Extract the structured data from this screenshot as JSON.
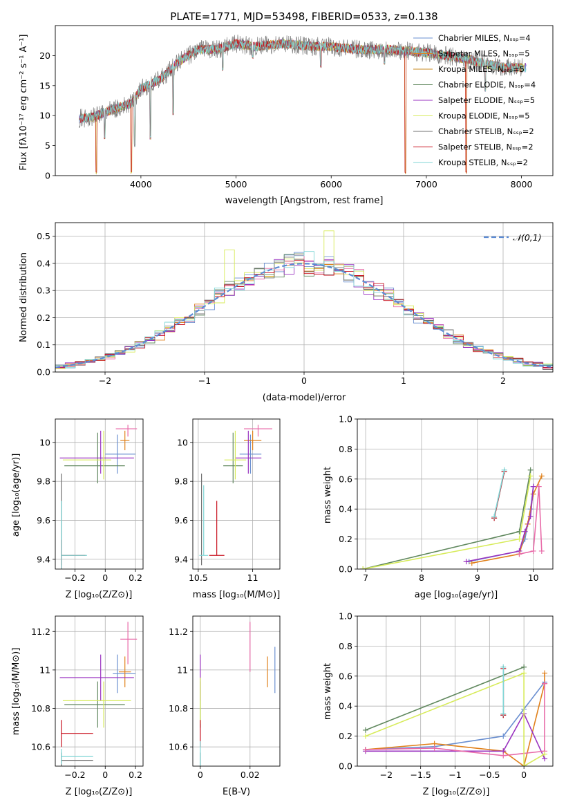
{
  "palette": [
    "#6a8fd0",
    "#e0801a",
    "#60885e",
    "#9a33c0",
    "#e86aa8",
    "#d7eb5a",
    "#707070",
    "#c8101e",
    "#7fd6d6"
  ],
  "chart_data": [
    {
      "id": "spectrum",
      "type": "line",
      "title": "PLATE=1771, MJD=53498, FIBERID=0533, z=0.138",
      "xlabel": "wavelength [Angstrom, rest frame]",
      "ylabel": "Flux [fλ10⁻¹⁷ erg cm⁻² s⁻¹ A⁻¹]",
      "xlim": [
        3100,
        8330
      ],
      "ylim": [
        0,
        25
      ],
      "xticks": [
        4000,
        5000,
        6000,
        7000,
        8000
      ],
      "yticks": [
        0,
        5,
        10,
        15,
        20
      ],
      "legend": "top-right",
      "series": [
        {
          "name": "Chabrier MILES, Nₛₛₚ=4",
          "color": "#6a8fd0"
        },
        {
          "name": "Salpeter MILES, Nₛₛₚ=5",
          "color": "#e0801a"
        },
        {
          "name": "Kroupa MILES, Nₛₛₚ=5",
          "color": "#c98a20"
        },
        {
          "name": "Chabrier ELODIE, Nₛₛₚ=4",
          "color": "#60885e"
        },
        {
          "name": "Salpeter ELODIE, Nₛₛₚ=5",
          "color": "#9a33c0"
        },
        {
          "name": "Kroupa ELODIE, Nₛₛₚ=5",
          "color": "#d7eb5a"
        },
        {
          "name": "Chabrier STELIB, Nₛₛₚ=2",
          "color": "#707070"
        },
        {
          "name": "Salpeter STELIB, Nₛₛₚ=2",
          "color": "#c8101e"
        },
        {
          "name": "Kroupa STELIB, Nₛₛₚ=2",
          "color": "#7fd6d6"
        }
      ],
      "anchors": [
        [
          3350,
          9.5
        ],
        [
          3500,
          9.8
        ],
        [
          3700,
          11
        ],
        [
          3900,
          12
        ],
        [
          4000,
          14.5
        ],
        [
          4200,
          16
        ],
        [
          4400,
          19
        ],
        [
          4600,
          21
        ],
        [
          4800,
          21
        ],
        [
          5000,
          22
        ],
        [
          5200,
          21.5
        ],
        [
          5500,
          22
        ],
        [
          5800,
          21.5
        ],
        [
          6000,
          21.5
        ],
        [
          6300,
          21
        ],
        [
          6600,
          21
        ],
        [
          7000,
          20.5
        ],
        [
          7400,
          19.5
        ],
        [
          7800,
          18
        ],
        [
          8050,
          18
        ]
      ],
      "dips": [
        [
          3530,
          0.3
        ],
        [
          3620,
          6
        ],
        [
          3900,
          0.3
        ],
        [
          3935,
          4.8
        ],
        [
          4100,
          6
        ],
        [
          4340,
          10
        ],
        [
          4860,
          17.5
        ],
        [
          5175,
          19.5
        ],
        [
          5890,
          18
        ],
        [
          6560,
          18.5
        ],
        [
          6780,
          0.3
        ],
        [
          7420,
          0.3
        ],
        [
          7620,
          14
        ]
      ]
    },
    {
      "id": "residuals",
      "type": "histogram",
      "xlabel": "(data-model)/error",
      "ylabel": "Normed distribution",
      "xlim": [
        -2.5,
        2.5
      ],
      "ylim": [
        0,
        0.55
      ],
      "xticks": [
        -2,
        -1,
        0,
        1,
        2
      ],
      "yticks": [
        0.0,
        0.1,
        0.2,
        0.3,
        0.4,
        0.5
      ],
      "bin_width": 0.1,
      "legend": "top-right",
      "reference": {
        "name": "𝒩(0,1)",
        "color": "#5b8bd4",
        "style": "dashed"
      }
    },
    {
      "id": "age_vs_Z",
      "type": "errorbar",
      "xlabel": "Z [log₁₀(Z/Z⊙)]",
      "ylabel": "age  [log₁₀(age/yr)]",
      "xlim": [
        -0.33,
        0.25
      ],
      "ylim": [
        9.35,
        10.12
      ],
      "xticks": [
        -0.2,
        0.0,
        0.2
      ],
      "yticks": [
        9.4,
        9.6,
        9.8,
        10.0
      ],
      "points": [
        {
          "x": 0.08,
          "y": 9.94,
          "xerr": [
            0.08,
            0.12
          ],
          "yerr": [
            0.1,
            0.1
          ],
          "c": 0
        },
        {
          "x": 0.13,
          "y": 10.01,
          "xerr": [
            0.03,
            0.03
          ],
          "yerr": [
            0.05,
            0.05
          ],
          "c": 1
        },
        {
          "x": -0.05,
          "y": 9.88,
          "xerr": [
            0.22,
            0.18
          ],
          "yerr": [
            0.09,
            0.17
          ],
          "c": 2
        },
        {
          "x": -0.03,
          "y": 9.92,
          "xerr": [
            0.27,
            0.22
          ],
          "yerr": [
            0.08,
            0.14
          ],
          "c": 3
        },
        {
          "x": 0.15,
          "y": 10.07,
          "xerr": [
            0.08,
            0.06
          ],
          "yerr": [
            0.04,
            0.02
          ],
          "c": 4
        },
        {
          "x": -0.01,
          "y": 9.91,
          "xerr": [
            0.27,
            0.05
          ],
          "yerr": [
            0.1,
            0.15
          ],
          "c": 5
        },
        {
          "x": -0.29,
          "y": 9.42,
          "xerr": [
            0.0,
            0.16
          ],
          "yerr": [
            0.05,
            0.42
          ],
          "c": 6
        },
        {
          "x": -0.29,
          "y": 9.42,
          "xerr": [
            0.0,
            0.16
          ],
          "yerr": [
            0.08,
            0.08
          ],
          "c": 7
        },
        {
          "x": -0.29,
          "y": 9.42,
          "xerr": [
            0.0,
            0.17
          ],
          "yerr": [
            0.12,
            0.28
          ],
          "c": 8
        }
      ]
    },
    {
      "id": "age_vs_mass",
      "type": "errorbar",
      "xlabel": "mass [log₁₀(M/M⊙)]",
      "ylabel": "",
      "xlim": [
        10.45,
        11.25
      ],
      "ylim": [
        9.35,
        10.12
      ],
      "xticks": [
        10.5,
        11.0
      ],
      "yticks": [
        9.4,
        9.6,
        9.8,
        10.0
      ],
      "points": [
        {
          "x": 10.98,
          "y": 9.94,
          "xerr": [
            0.1,
            0.1
          ],
          "yerr": [
            0.1,
            0.1
          ],
          "c": 0
        },
        {
          "x": 11.0,
          "y": 10.01,
          "xerr": [
            0.08,
            0.08
          ],
          "yerr": [
            0.05,
            0.05
          ],
          "c": 1
        },
        {
          "x": 10.82,
          "y": 9.88,
          "xerr": [
            0.09,
            0.09
          ],
          "yerr": [
            0.09,
            0.17
          ],
          "c": 2
        },
        {
          "x": 10.96,
          "y": 9.92,
          "xerr": [
            0.12,
            0.12
          ],
          "yerr": [
            0.08,
            0.14
          ],
          "c": 3
        },
        {
          "x": 11.05,
          "y": 10.07,
          "xerr": [
            0.13,
            0.13
          ],
          "yerr": [
            0.04,
            0.02
          ],
          "c": 4
        },
        {
          "x": 10.84,
          "y": 9.91,
          "xerr": [
            0.1,
            0.1
          ],
          "yerr": [
            0.1,
            0.15
          ],
          "c": 5
        },
        {
          "x": 10.53,
          "y": 9.42,
          "xerr": [
            0.0,
            0.0
          ],
          "yerr": [
            0.05,
            0.42
          ],
          "c": 6
        },
        {
          "x": 10.67,
          "y": 9.42,
          "xerr": [
            0.07,
            0.07
          ],
          "yerr": [
            0.0,
            0.28
          ],
          "c": 7
        },
        {
          "x": 10.55,
          "y": 9.42,
          "xerr": [
            0.04,
            0.04
          ],
          "yerr": [
            0.0,
            0.36
          ],
          "c": 8
        }
      ]
    },
    {
      "id": "weight_vs_age",
      "type": "line",
      "xlabel": "age  [log₁₀(age/yr)]",
      "ylabel": "mass weight",
      "xlim": [
        6.85,
        10.35
      ],
      "ylim": [
        0.0,
        1.0
      ],
      "xticks": [
        7,
        8,
        9,
        10
      ],
      "yticks": [
        0.0,
        0.2,
        0.4,
        0.6,
        0.8,
        1.0
      ],
      "series": [
        {
          "c": 0,
          "x": [
            8.85,
            9.75,
            9.85,
            9.95,
            10.0
          ],
          "y": [
            0.05,
            0.12,
            0.2,
            0.4,
            0.55
          ]
        },
        {
          "c": 1,
          "x": [
            8.9,
            9.75,
            9.9,
            10.0,
            10.15
          ],
          "y": [
            0.04,
            0.1,
            0.3,
            0.5,
            0.62
          ]
        },
        {
          "c": 2,
          "x": [
            6.95,
            9.75,
            9.95
          ],
          "y": [
            0.0,
            0.25,
            0.66
          ]
        },
        {
          "c": 3,
          "x": [
            8.8,
            9.75,
            9.85,
            9.95,
            10.0
          ],
          "y": [
            0.05,
            0.12,
            0.25,
            0.35,
            0.55
          ]
        },
        {
          "c": 4,
          "x": [
            9.75,
            10.0,
            10.1,
            10.15
          ],
          "y": [
            0.1,
            0.12,
            0.55,
            0.12
          ]
        },
        {
          "c": 5,
          "x": [
            6.95,
            9.75,
            9.95
          ],
          "y": [
            0.0,
            0.2,
            0.62
          ]
        },
        {
          "c": 6,
          "x": [
            9.3,
            9.48
          ],
          "y": [
            0.34,
            0.65
          ]
        },
        {
          "c": 7,
          "x": [
            9.3,
            9.48
          ],
          "y": [
            0.34,
            0.65
          ]
        },
        {
          "c": 8,
          "x": [
            9.3,
            9.48
          ],
          "y": [
            0.35,
            0.66
          ]
        }
      ]
    },
    {
      "id": "mass_vs_Z",
      "type": "errorbar",
      "xlabel": "Z [log₁₀(Z/Z⊙)]",
      "ylabel": "mass [log₁₀(M/M⊙)]",
      "xlim": [
        -0.33,
        0.25
      ],
      "ylim": [
        10.5,
        11.28
      ],
      "xticks": [
        -0.2,
        0.0,
        0.2
      ],
      "yticks": [
        10.6,
        10.8,
        11.0,
        11.2
      ],
      "points": [
        {
          "x": 0.08,
          "y": 10.98,
          "xerr": [
            0.03,
            0.12
          ],
          "yerr": [
            0.1,
            0.1
          ],
          "c": 0
        },
        {
          "x": 0.13,
          "y": 10.99,
          "xerr": [
            0.04,
            0.04
          ],
          "yerr": [
            0.08,
            0.08
          ],
          "c": 1
        },
        {
          "x": -0.05,
          "y": 10.82,
          "xerr": [
            0.22,
            0.18
          ],
          "yerr": [
            0.12,
            0.12
          ],
          "c": 2
        },
        {
          "x": -0.03,
          "y": 10.96,
          "xerr": [
            0.27,
            0.22
          ],
          "yerr": [
            0.12,
            0.12
          ],
          "c": 3
        },
        {
          "x": 0.15,
          "y": 11.16,
          "xerr": [
            0.05,
            0.06
          ],
          "yerr": [
            0.13,
            0.09
          ],
          "c": 4
        },
        {
          "x": -0.01,
          "y": 10.84,
          "xerr": [
            0.27,
            0.18
          ],
          "yerr": [
            0.14,
            0.1
          ],
          "c": 5
        },
        {
          "x": -0.29,
          "y": 10.53,
          "xerr": [
            0.0,
            0.21
          ],
          "yerr": [
            0.04,
            0.04
          ],
          "c": 6
        },
        {
          "x": -0.29,
          "y": 10.67,
          "xerr": [
            0.0,
            0.21
          ],
          "yerr": [
            0.07,
            0.07
          ],
          "c": 7
        },
        {
          "x": -0.29,
          "y": 10.55,
          "xerr": [
            0.0,
            0.21
          ],
          "yerr": [
            0.04,
            0.04
          ],
          "c": 8
        }
      ]
    },
    {
      "id": "mass_vs_EBV",
      "type": "errorbar",
      "xlabel": "E(B-V)",
      "ylabel": "",
      "xlim": [
        -0.003,
        0.032
      ],
      "ylim": [
        10.5,
        11.28
      ],
      "xticks": [
        0.0,
        0.02
      ],
      "yticks": [
        10.6,
        10.8,
        11.0,
        11.2
      ],
      "points": [
        {
          "x": 0.03,
          "y": 11.0,
          "xerr": [
            0,
            0
          ],
          "yerr": [
            0.12,
            0.12
          ],
          "c": 0
        },
        {
          "x": 0.027,
          "y": 10.99,
          "xerr": [
            0,
            0
          ],
          "yerr": [
            0.08,
            0.08
          ],
          "c": 1
        },
        {
          "x": 0.0,
          "y": 10.82,
          "xerr": [
            0,
            0
          ],
          "yerr": [
            0.12,
            0.12
          ],
          "c": 2
        },
        {
          "x": 0.0,
          "y": 10.96,
          "xerr": [
            0,
            0
          ],
          "yerr": [
            0.12,
            0.12
          ],
          "c": 3
        },
        {
          "x": 0.02,
          "y": 11.12,
          "xerr": [
            0,
            0
          ],
          "yerr": [
            0.13,
            0.13
          ],
          "c": 4
        },
        {
          "x": 0.0,
          "y": 10.84,
          "xerr": [
            0,
            0
          ],
          "yerr": [
            0.12,
            0.12
          ],
          "c": 5
        },
        {
          "x": 0.0,
          "y": 10.53,
          "xerr": [
            0,
            0
          ],
          "yerr": [
            0.04,
            0.04
          ],
          "c": 6
        },
        {
          "x": 0.0,
          "y": 10.67,
          "xerr": [
            0,
            0
          ],
          "yerr": [
            0.07,
            0.07
          ],
          "c": 7
        },
        {
          "x": 0.0,
          "y": 10.56,
          "xerr": [
            0,
            0
          ],
          "yerr": [
            0.07,
            0.07
          ],
          "c": 8
        }
      ]
    },
    {
      "id": "weight_vs_Z",
      "type": "line",
      "xlabel": "Z [log₁₀(Z/Z⊙)]",
      "ylabel": "mass weight",
      "xlim": [
        -2.42,
        0.42
      ],
      "ylim": [
        0.0,
        1.0
      ],
      "xticks": [
        -2.0,
        -1.5,
        -1.0,
        -0.5,
        0.0
      ],
      "yticks": [
        0.0,
        0.2,
        0.4,
        0.6,
        0.8,
        1.0
      ],
      "series": [
        {
          "c": 0,
          "x": [
            -2.3,
            -1.3,
            -0.3,
            0.0,
            0.3
          ],
          "y": [
            0.11,
            0.13,
            0.2,
            0.38,
            0.56
          ]
        },
        {
          "c": 1,
          "x": [
            -2.3,
            -1.3,
            -0.3,
            0.0,
            0.3,
            0.3
          ],
          "y": [
            0.11,
            0.15,
            0.1,
            0.0,
            0.55,
            0.62
          ]
        },
        {
          "c": 2,
          "x": [
            -2.3,
            0.0
          ],
          "y": [
            0.24,
            0.66
          ]
        },
        {
          "c": 3,
          "x": [
            -2.3,
            -0.3,
            0.0,
            0.3
          ],
          "y": [
            0.1,
            0.1,
            0.35,
            0.05
          ]
        },
        {
          "c": 4,
          "x": [
            -2.3,
            -1.3,
            -0.3,
            0.3,
            0.3
          ],
          "y": [
            0.11,
            0.12,
            0.07,
            0.1,
            0.55
          ]
        },
        {
          "c": 5,
          "x": [
            -2.3,
            0.0,
            0.0,
            0.3
          ],
          "y": [
            0.2,
            0.62,
            0.0,
            0.08
          ]
        },
        {
          "c": 6,
          "x": [
            -0.3,
            -0.3
          ],
          "y": [
            0.34,
            0.65
          ]
        },
        {
          "c": 7,
          "x": [
            -0.3,
            -0.3
          ],
          "y": [
            0.34,
            0.65
          ]
        },
        {
          "c": 8,
          "x": [
            -0.3,
            -0.3
          ],
          "y": [
            0.35,
            0.66
          ]
        }
      ]
    }
  ]
}
